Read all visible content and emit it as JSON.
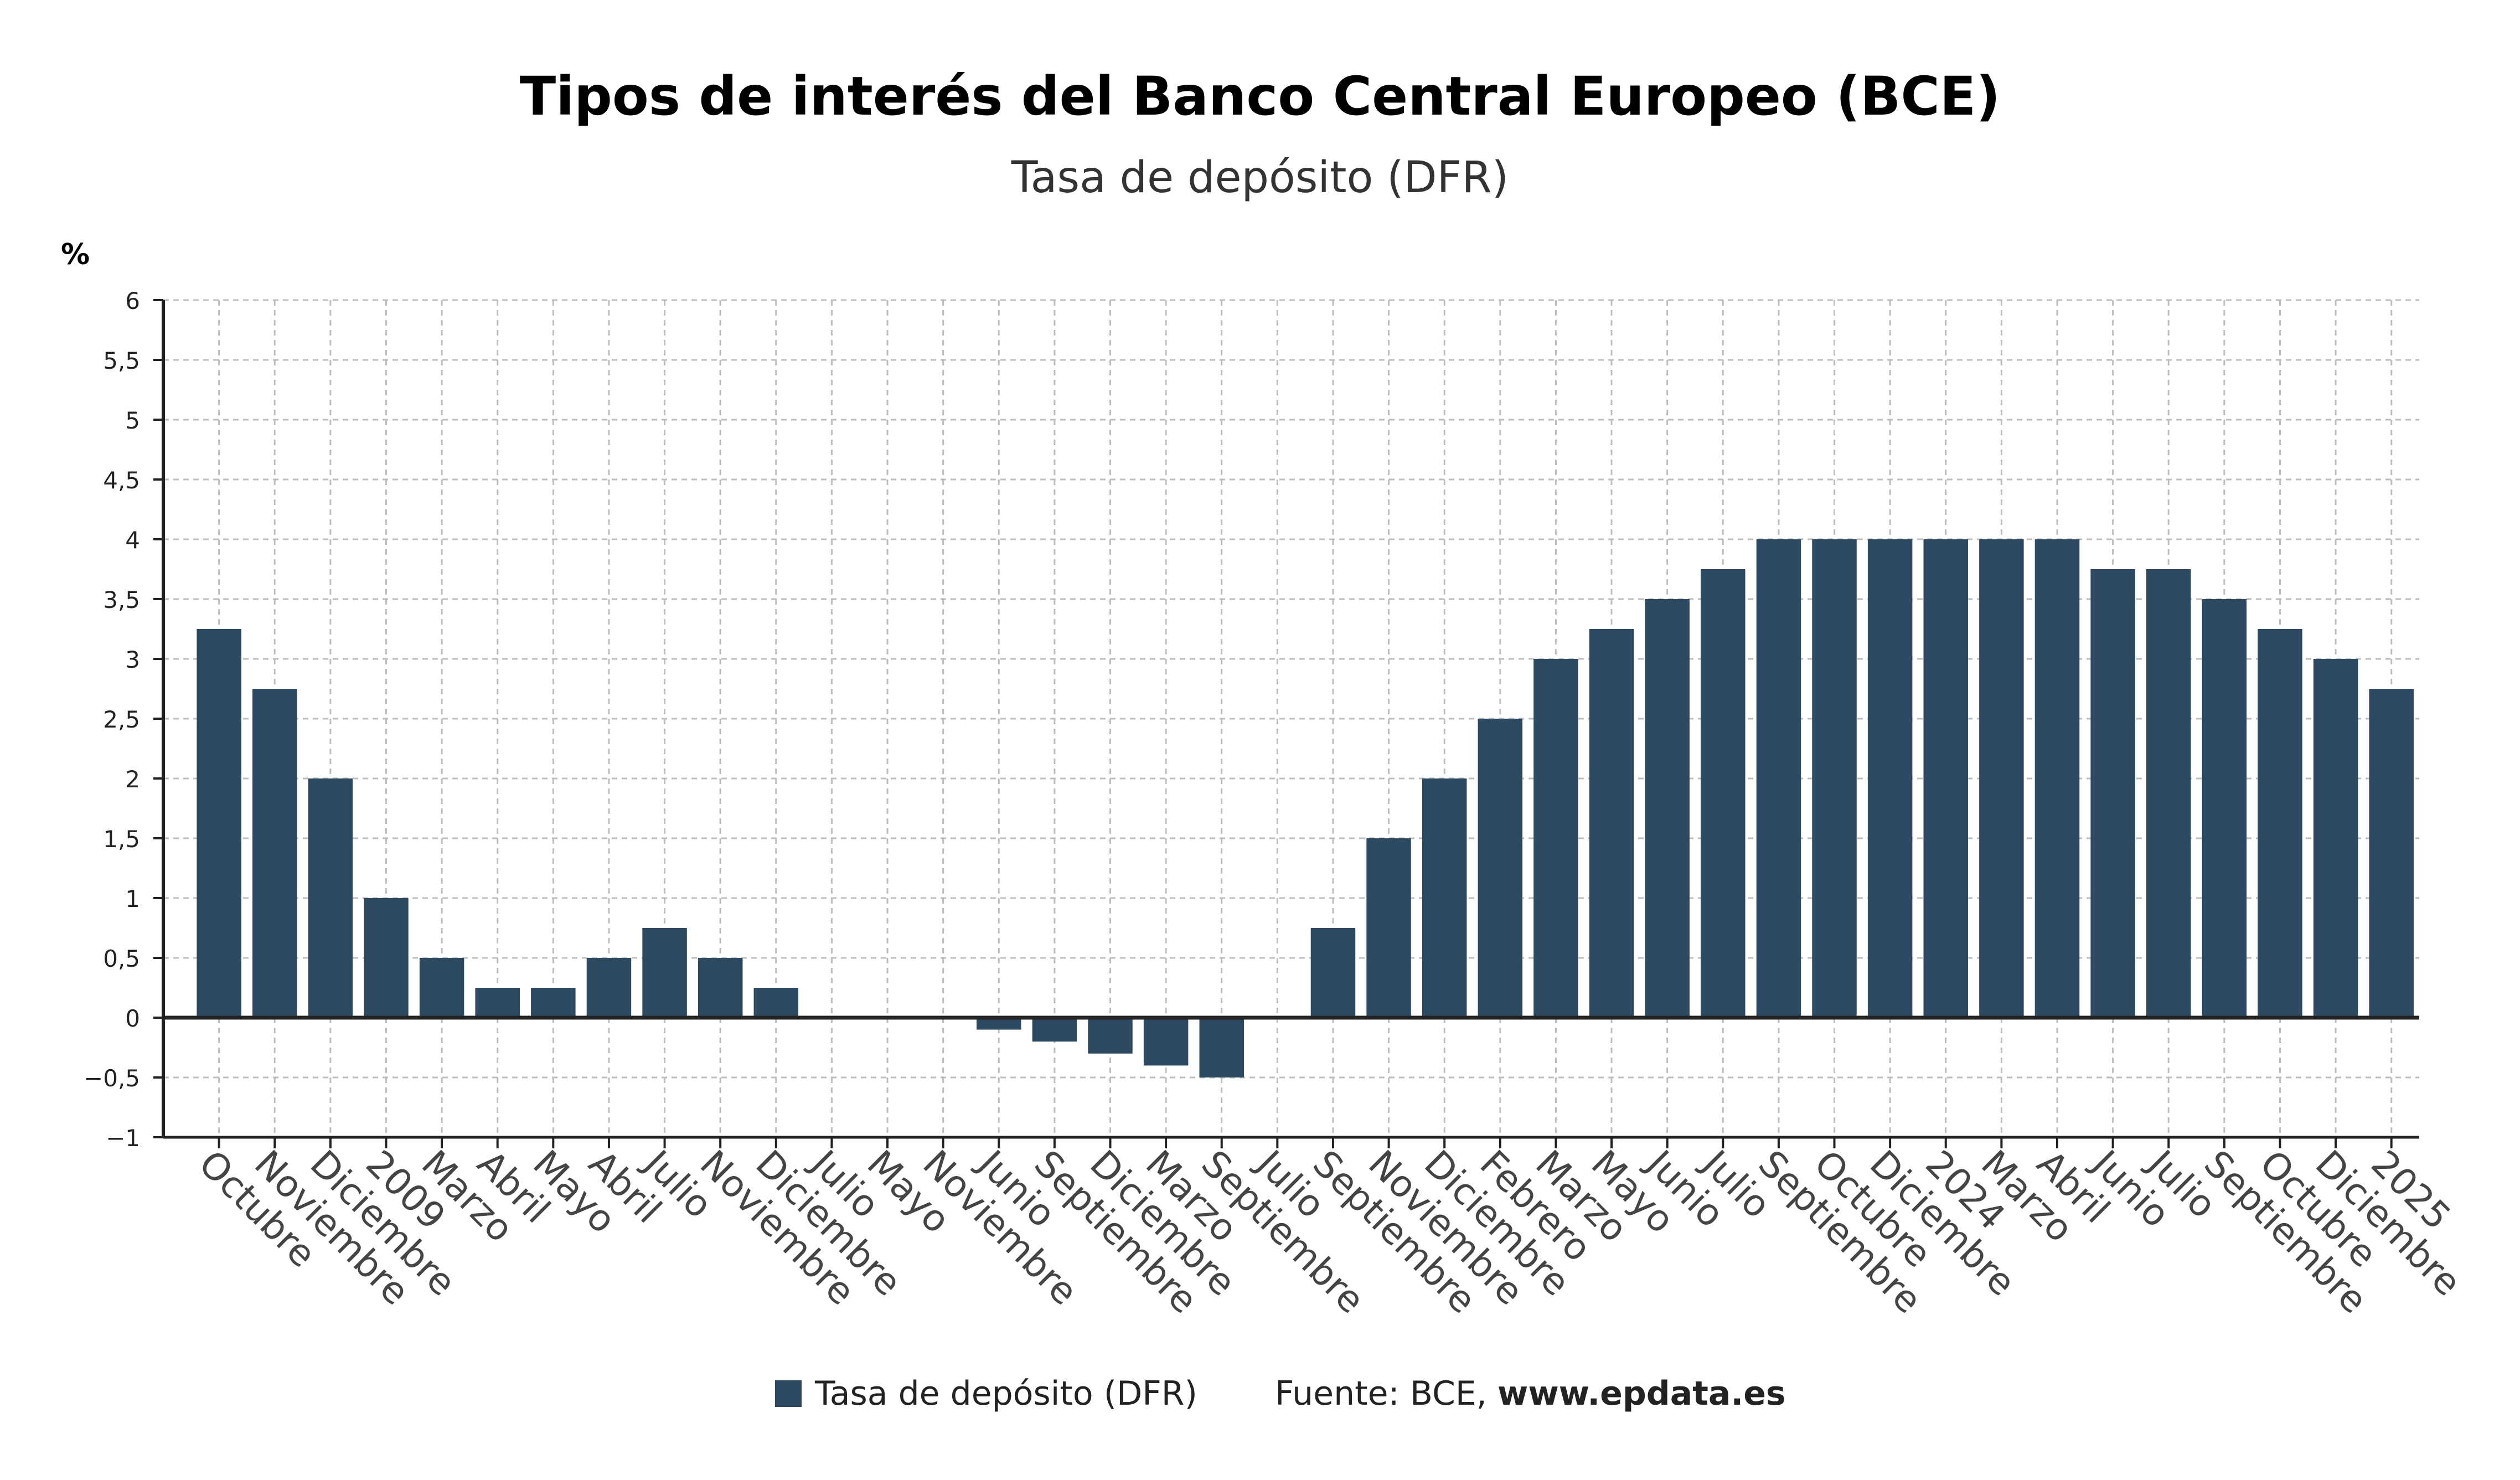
{
  "title": "Tipos de interés del Banco Central Europeo (BCE)",
  "subtitle": "Tasa de depósito (DFR)",
  "unit_label": "%",
  "legend": {
    "series_label": "Tasa de depósito (DFR)",
    "source_prefix": "Fuente: BCE, ",
    "source_site": "www.epdata.es"
  },
  "colors": {
    "bar": "#2e4a63",
    "grid": "#bdbdbd",
    "axis": "#222222"
  },
  "chart_data": {
    "type": "bar",
    "title": "Tipos de interés del Banco Central Europeo (BCE)",
    "subtitle": "Tasa de depósito (DFR)",
    "ylabel": "%",
    "ylim": [
      -1,
      6
    ],
    "yticks": [
      "−1",
      "−0,5",
      "0",
      "0,5",
      "1",
      "1,5",
      "2",
      "2,5",
      "3",
      "3,5",
      "4",
      "4,5",
      "5",
      "5,5",
      "6"
    ],
    "grid": true,
    "legend_position": "bottom",
    "categories": [
      "Octubre",
      "Noviembre",
      "Diciembre",
      "2009",
      "Marzo",
      "Abril",
      "Mayo",
      "Abril",
      "Julio",
      "Noviembre",
      "Diciembre",
      "Julio",
      "Mayo",
      "Noviembre",
      "Junio",
      "Septiembre",
      "Diciembre",
      "Marzo",
      "Septiembre",
      "Julio",
      "Septiembre",
      "Noviembre",
      "Diciembre",
      "Febrero",
      "Marzo",
      "Mayo",
      "Junio",
      "Julio",
      "Septiembre",
      "Octubre",
      "Diciembre",
      "2024",
      "Marzo",
      "Abril",
      "Junio",
      "Julio",
      "Septiembre",
      "Octubre",
      "Diciembre",
      "2025"
    ],
    "series": [
      {
        "name": "Tasa de depósito (DFR)",
        "values": [
          3.25,
          2.75,
          2.0,
          1.0,
          0.5,
          0.25,
          0.25,
          0.5,
          0.75,
          0.5,
          0.25,
          0,
          0,
          0,
          -0.1,
          -0.2,
          -0.3,
          -0.4,
          -0.5,
          0,
          0.75,
          1.5,
          2.0,
          2.5,
          3.0,
          3.25,
          3.5,
          3.75,
          4.0,
          4.0,
          4.0,
          4.0,
          4.0,
          4.0,
          3.75,
          3.75,
          3.5,
          3.25,
          3.0,
          2.75
        ]
      }
    ]
  }
}
